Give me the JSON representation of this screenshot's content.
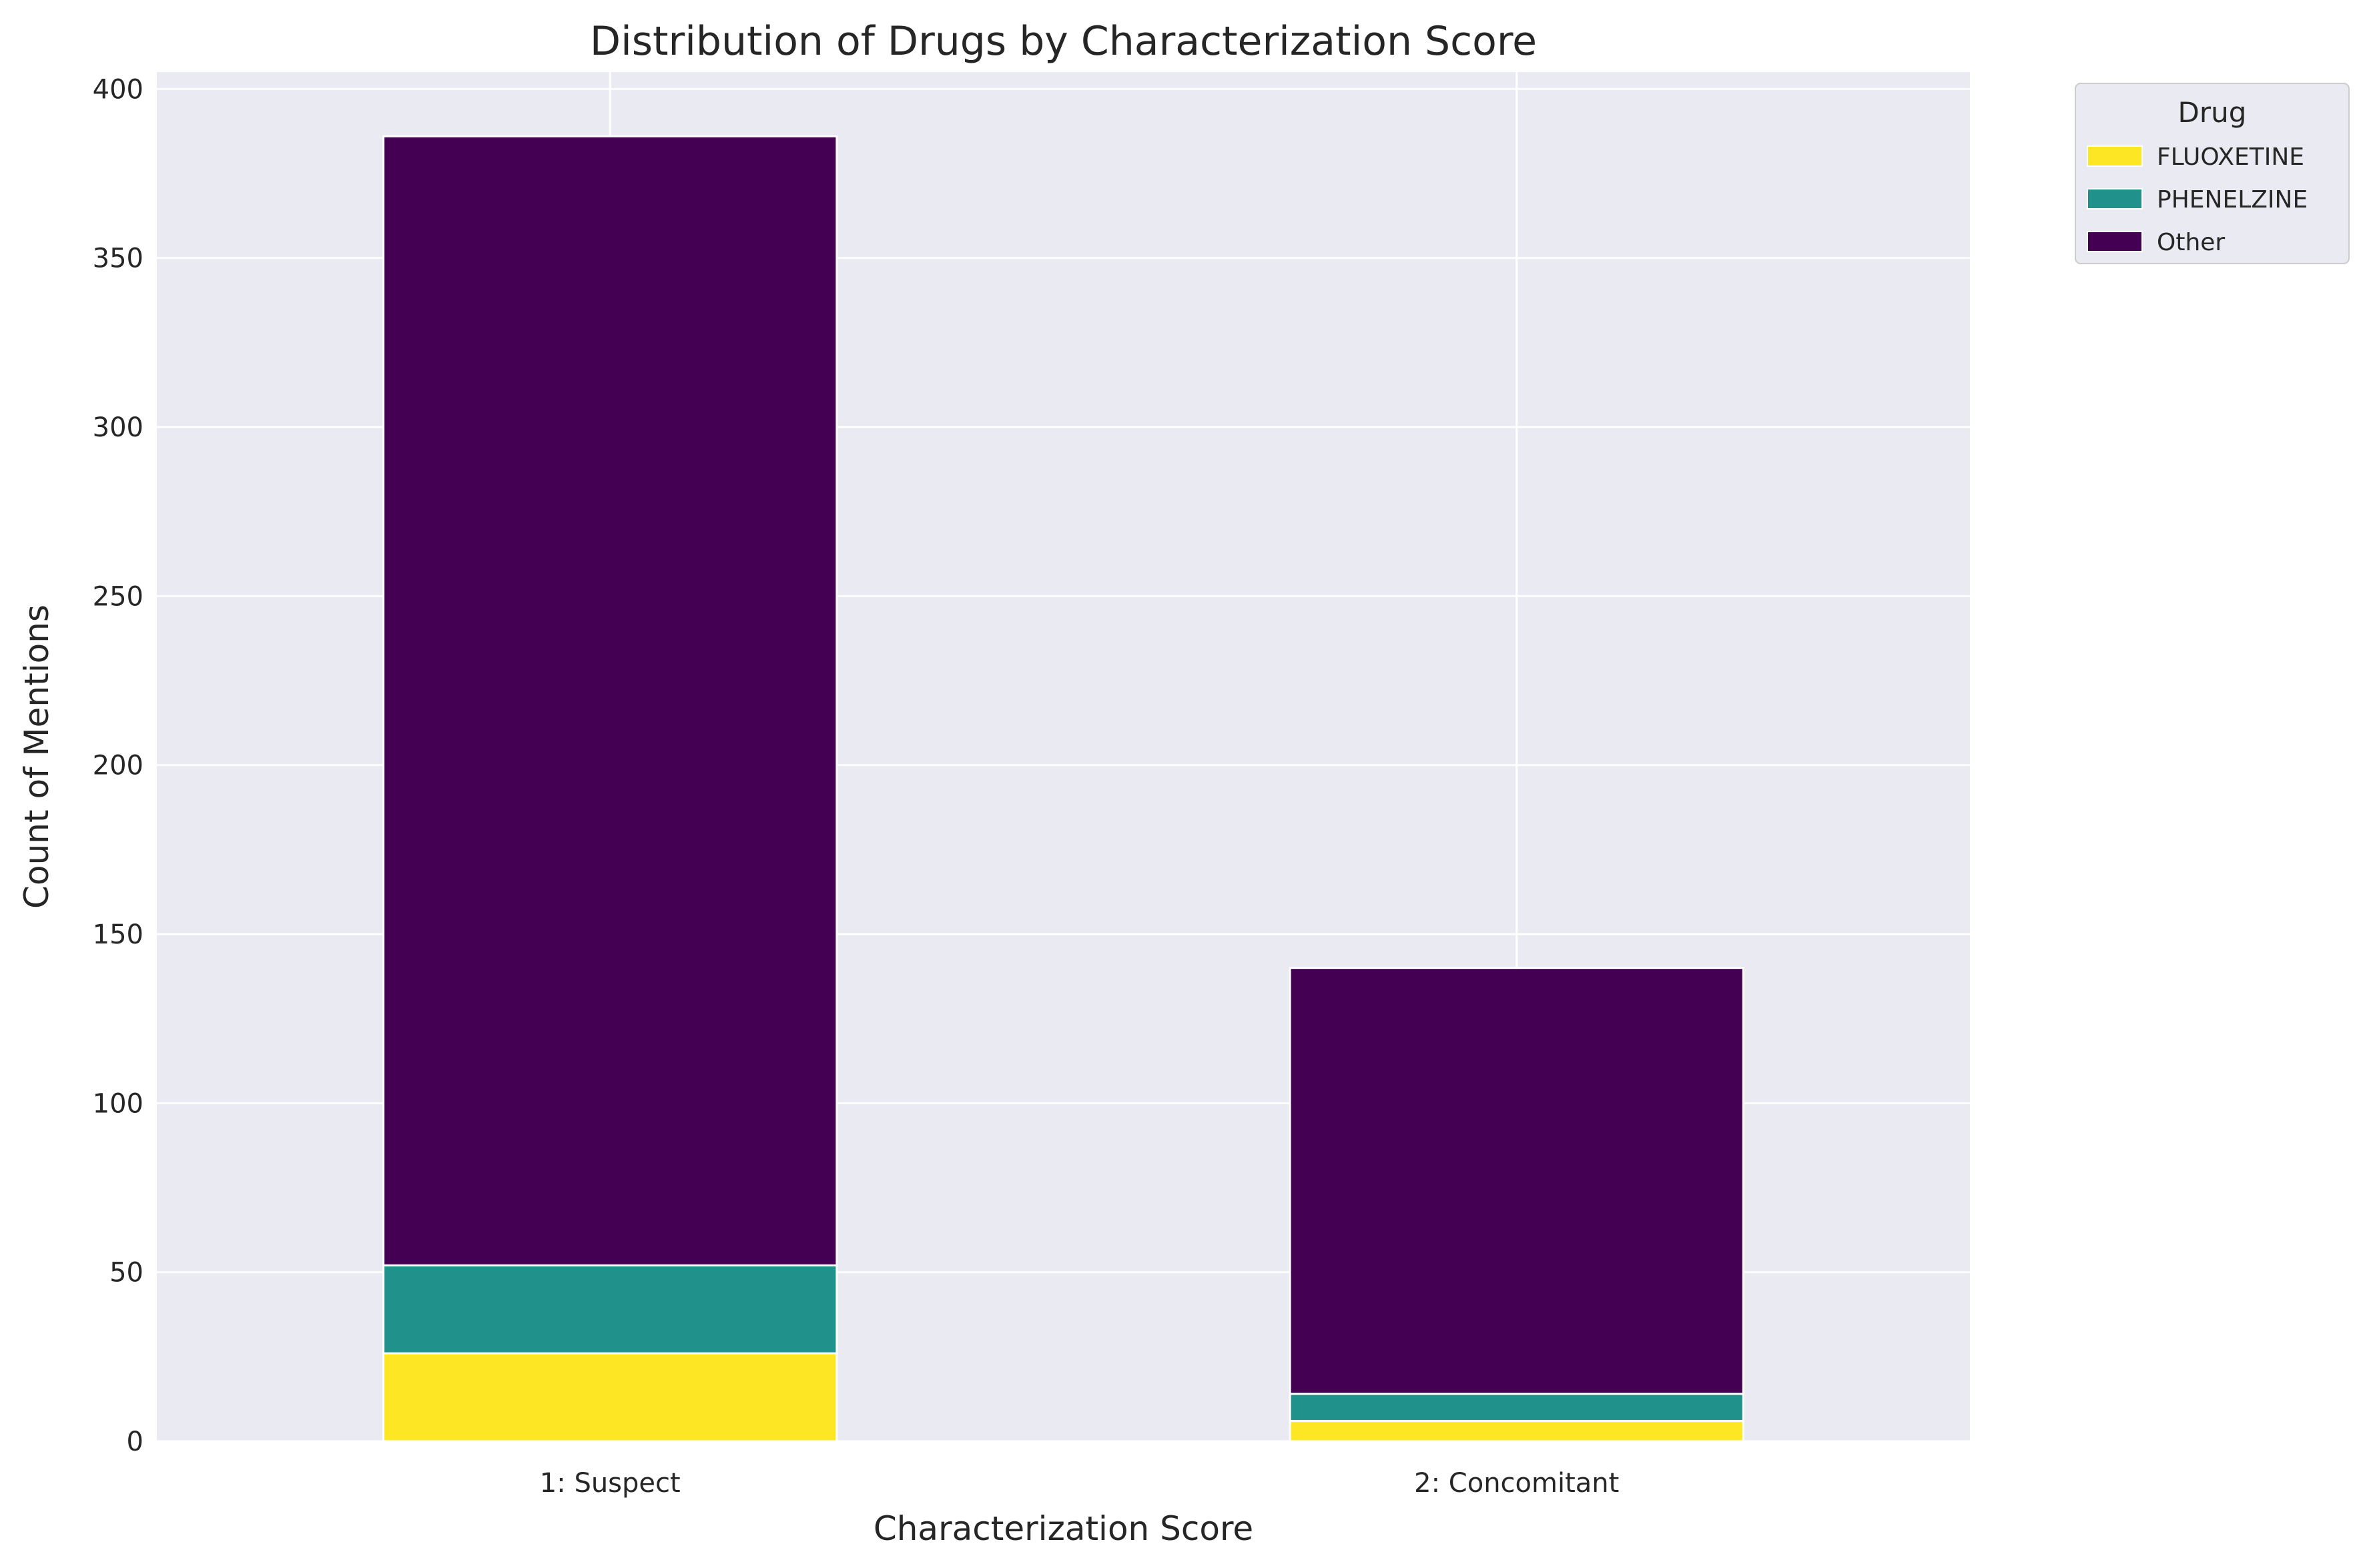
{
  "chart_data": {
    "type": "bar",
    "stacked": true,
    "title": "Distribution of Drugs by Characterization Score",
    "xlabel": "Characterization Score",
    "ylabel": "Count of Mentions",
    "categories": [
      "1: Suspect",
      "2: Concomitant"
    ],
    "series": [
      {
        "name": "FLUOXETINE",
        "values": [
          26,
          6
        ],
        "color": "#fde725"
      },
      {
        "name": "PHENELZINE",
        "values": [
          26,
          8
        ],
        "color": "#21918c"
      },
      {
        "name": "Other",
        "values": [
          334,
          126
        ],
        "color": "#440154"
      }
    ],
    "ylim": [
      0,
      405
    ],
    "yticks": [
      0,
      50,
      100,
      150,
      200,
      250,
      300,
      350,
      400
    ],
    "grid": true,
    "legend": {
      "title": "Drug",
      "placement": "outside-top-right"
    },
    "background_color": "#eaeaf2",
    "grid_color": "#ffffff"
  }
}
